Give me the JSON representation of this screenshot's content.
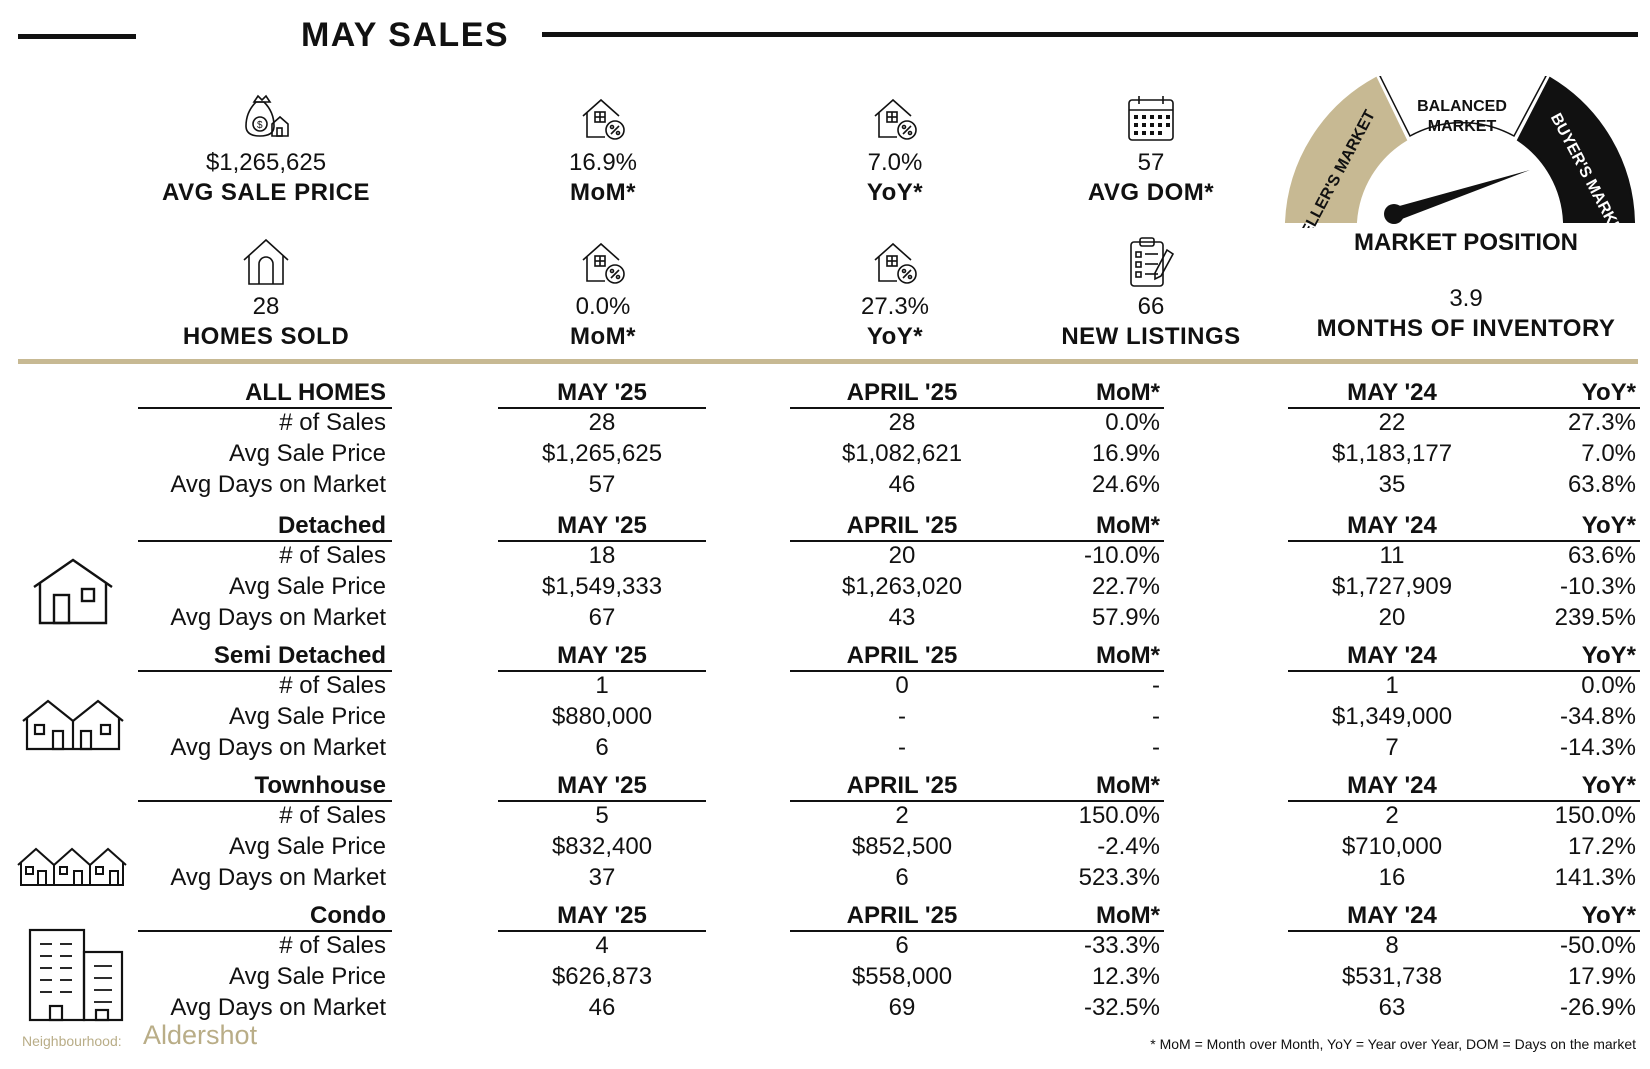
{
  "header": {
    "title": "MAY SALES"
  },
  "stats": {
    "avg_sale_price": {
      "value": "$1,265,625",
      "label": "AVG SALE PRICE",
      "icon": "money-bag-house-icon"
    },
    "price_mom": {
      "value": "16.9%",
      "label": "MoM*",
      "icon": "house-percent-icon"
    },
    "price_yoy": {
      "value": "7.0%",
      "label": "YoY*",
      "icon": "house-percent-icon"
    },
    "avg_dom": {
      "value": "57",
      "label": "AVG DOM*",
      "icon": "calendar-icon"
    },
    "homes_sold": {
      "value": "28",
      "label": "HOMES SOLD",
      "icon": "house-icon"
    },
    "sold_mom": {
      "value": "0.0%",
      "label": "MoM*",
      "icon": "house-percent-icon"
    },
    "sold_yoy": {
      "value": "27.3%",
      "label": "YoY*",
      "icon": "house-percent-icon"
    },
    "new_listings": {
      "value": "66",
      "label": "NEW LISTINGS",
      "icon": "clipboard-checklist-icon"
    },
    "months_inventory": {
      "value": "3.9",
      "label": "MONTHS OF INVENTORY"
    }
  },
  "gauge": {
    "sellers": "SELLER'S MARKET",
    "balanced_line1": "BALANCED",
    "balanced_line2": "MARKET",
    "buyers": "BUYER'S MARKET",
    "title": "MARKET POSITION",
    "position": "buyers",
    "colors": {
      "sellers": "#c7b993",
      "balanced": "#ffffff",
      "buyers": "#111111"
    }
  },
  "table": {
    "row_labels": [
      "# of Sales",
      "Avg Sale Price",
      "Avg Days on Market"
    ],
    "sections": [
      {
        "name": "ALL HOMES",
        "icon": "",
        "h_may25": "MAY '25",
        "h_apr25": "APRIL '25",
        "h_mom": "MoM*",
        "h_may24": "MAY '24",
        "h_yoy": "YoY*",
        "rows": [
          {
            "label": "# of Sales",
            "may25": "28",
            "apr25": "28",
            "mom": "0.0%",
            "may24": "22",
            "yoy": "27.3%"
          },
          {
            "label": "Avg Sale Price",
            "may25": "$1,265,625",
            "apr25": "$1,082,621",
            "mom": "16.9%",
            "may24": "$1,183,177",
            "yoy": "7.0%"
          },
          {
            "label": "Avg Days on Market",
            "may25": "57",
            "apr25": "46",
            "mom": "24.6%",
            "may24": "35",
            "yoy": "63.8%"
          }
        ]
      },
      {
        "name": "Detached",
        "icon": "detached-house-icon",
        "h_may25": "MAY '25",
        "h_apr25": "APRIL '25",
        "h_mom": "MoM*",
        "h_may24": "MAY '24",
        "h_yoy": "YoY*",
        "rows": [
          {
            "label": "# of Sales",
            "may25": "18",
            "apr25": "20",
            "mom": "-10.0%",
            "may24": "11",
            "yoy": "63.6%"
          },
          {
            "label": "Avg Sale Price",
            "may25": "$1,549,333",
            "apr25": "$1,263,020",
            "mom": "22.7%",
            "may24": "$1,727,909",
            "yoy": "-10.3%"
          },
          {
            "label": "Avg Days on Market",
            "may25": "67",
            "apr25": "43",
            "mom": "57.9%",
            "may24": "20",
            "yoy": "239.5%"
          }
        ]
      },
      {
        "name": "Semi Detached",
        "icon": "semi-detached-house-icon",
        "h_may25": "MAY '25",
        "h_apr25": "APRIL '25",
        "h_mom": "MoM*",
        "h_may24": "MAY '24",
        "h_yoy": "YoY*",
        "rows": [
          {
            "label": "# of Sales",
            "may25": "1",
            "apr25": "0",
            "mom": "-",
            "may24": "1",
            "yoy": "0.0%"
          },
          {
            "label": "Avg Sale Price",
            "may25": "$880,000",
            "apr25": "-",
            "mom": "-",
            "may24": "$1,349,000",
            "yoy": "-34.8%"
          },
          {
            "label": "Avg Days on Market",
            "may25": "6",
            "apr25": "-",
            "mom": "-",
            "may24": "7",
            "yoy": "-14.3%"
          }
        ]
      },
      {
        "name": "Townhouse",
        "icon": "townhouse-icon",
        "h_may25": "MAY '25",
        "h_apr25": "APRIL '25",
        "h_mom": "MoM*",
        "h_may24": "MAY '24",
        "h_yoy": "YoY*",
        "rows": [
          {
            "label": "# of Sales",
            "may25": "5",
            "apr25": "2",
            "mom": "150.0%",
            "may24": "2",
            "yoy": "150.0%"
          },
          {
            "label": "Avg Sale Price",
            "may25": "$832,400",
            "apr25": "$852,500",
            "mom": "-2.4%",
            "may24": "$710,000",
            "yoy": "17.2%"
          },
          {
            "label": "Avg Days on Market",
            "may25": "37",
            "apr25": "6",
            "mom": "523.3%",
            "may24": "16",
            "yoy": "141.3%"
          }
        ]
      },
      {
        "name": "Condo",
        "icon": "condo-building-icon",
        "h_may25": "MAY '25",
        "h_apr25": "APRIL '25",
        "h_mom": "MoM*",
        "h_may24": "MAY '24",
        "h_yoy": "YoY*",
        "rows": [
          {
            "label": "# of Sales",
            "may25": "4",
            "apr25": "6",
            "mom": "-33.3%",
            "may24": "8",
            "yoy": "-50.0%"
          },
          {
            "label": "Avg Sale Price",
            "may25": "$626,873",
            "apr25": "$558,000",
            "mom": "12.3%",
            "may24": "$531,738",
            "yoy": "17.9%"
          },
          {
            "label": "Avg Days on Market",
            "may25": "46",
            "apr25": "69",
            "mom": "-32.5%",
            "may24": "63",
            "yoy": "-26.9%"
          }
        ]
      }
    ]
  },
  "footer": {
    "neighbourhood_label": "Neighbourhood:",
    "neighbourhood": "Aldershot",
    "legend": "* MoM = Month over Month, YoY = Year over Year, DOM = Days on the market"
  }
}
